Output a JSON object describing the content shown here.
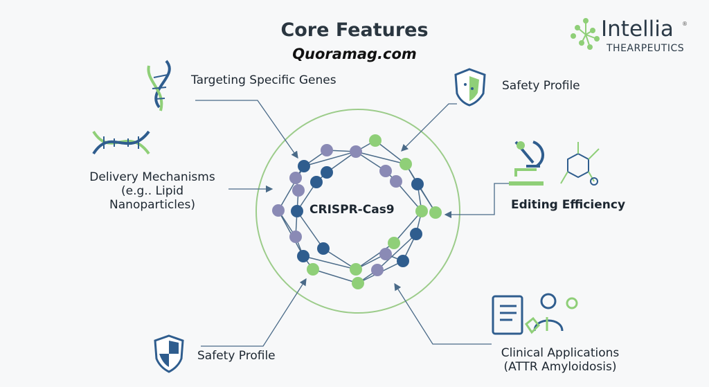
{
  "title": "Core Features",
  "subtitle": "Quoramag.com",
  "logo": {
    "name": "Intellia",
    "tagline": "THEARPEUTICS",
    "registered": "®"
  },
  "center": {
    "label": "CRISPR-Cas9"
  },
  "features": [
    {
      "label": "Targeting Specific Genes",
      "icon": "dna-helix-icon"
    },
    {
      "label": "Safety Profile",
      "icon": "shield-molecule-icon"
    },
    {
      "label_line1": "Delivery Mechanisms",
      "label_line2": "(e.g.. Lipid Nanoparticles)",
      "icon": "dna-icon"
    },
    {
      "label": "Editing Efficiency",
      "icon": "microscope-icon"
    },
    {
      "label": "Safety Profile",
      "icon": "shield-icon"
    },
    {
      "label_line1": "Clinical Applications",
      "label_line2": "(ATTR Amyloidosis)",
      "icon": "clinical-icon"
    }
  ],
  "colors": {
    "green": "#8fcf78",
    "blue": "#2f5d8e",
    "purple": "#8a8ab5",
    "arrow": "#4a6a88",
    "ring": "#9ccc8a"
  }
}
